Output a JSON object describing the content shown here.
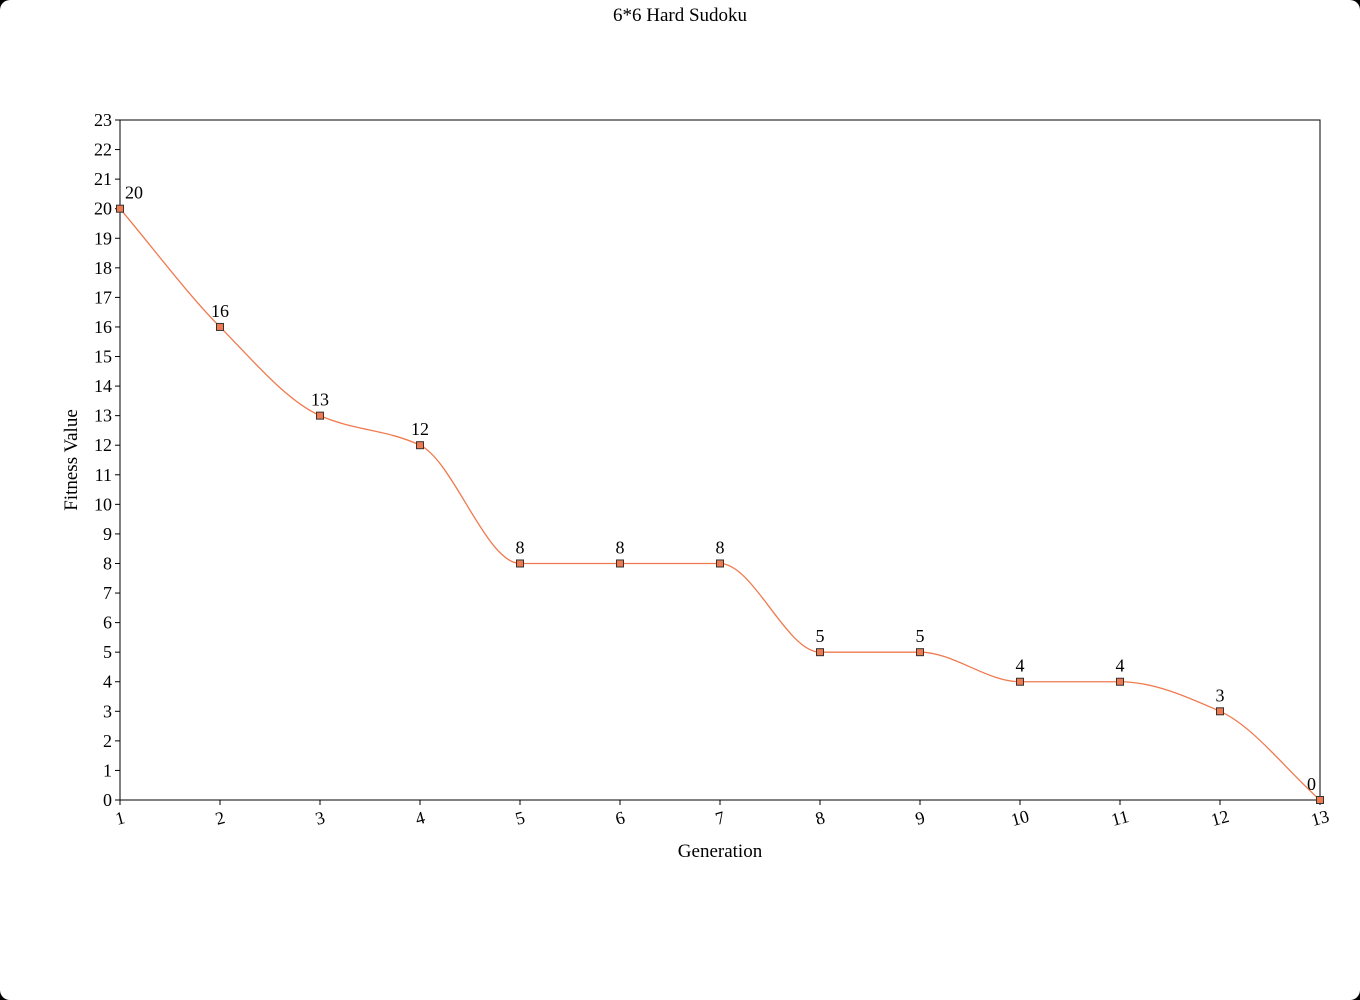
{
  "chart_data": {
    "type": "line",
    "title": "6*6 Hard Sudoku",
    "xlabel": "Generation",
    "ylabel": "Fitness Value",
    "x": [
      1,
      2,
      3,
      4,
      5,
      6,
      7,
      8,
      9,
      10,
      11,
      12,
      13
    ],
    "series": [
      {
        "values": [
          20,
          16,
          13,
          12,
          8,
          8,
          8,
          5,
          5,
          4,
          4,
          3,
          0
        ]
      }
    ],
    "xlim": [
      1,
      13
    ],
    "ylim": [
      0,
      23
    ],
    "smooth": true,
    "data_labels": true,
    "grid": false,
    "legend": "none",
    "line_color": "#f07a50",
    "marker_fill": "#f07a50",
    "marker_stroke": "#333333"
  }
}
